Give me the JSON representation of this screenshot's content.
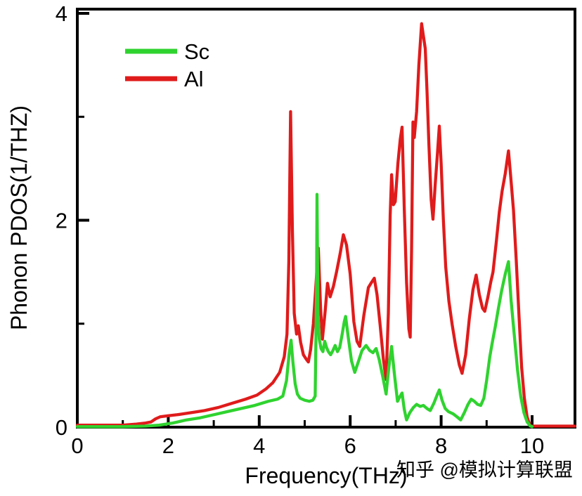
{
  "figure": {
    "background": "#ffffff",
    "watermark": {
      "text": "知乎 @模拟计算联盟",
      "color": "#c9c9c9"
    }
  },
  "chart_data": {
    "type": "line",
    "title": "",
    "xlabel": "Frequency(THz)",
    "ylabel": "Phonon PDOS(1/THZ)",
    "xlim": [
      0,
      10.94
    ],
    "ylim": [
      0,
      4.04
    ],
    "grid": false,
    "frame_color": "#000000",
    "legend_position": "top-left-inside",
    "x_major_ticks": [
      0,
      2,
      4,
      6,
      8,
      10
    ],
    "x_minor_ticks": [
      1,
      3,
      5,
      7,
      9
    ],
    "x_tick_labels": [
      "0",
      "2",
      "4",
      "6",
      "8",
      "10"
    ],
    "y_major_ticks": [
      0,
      2,
      4
    ],
    "y_minor_ticks": [
      1,
      3
    ],
    "y_tick_labels": [
      "0",
      "2",
      "4"
    ],
    "series": [
      {
        "name": "Sc",
        "color": "#2FD32F",
        "points": [
          [
            0,
            0.005
          ],
          [
            1.0,
            0.005
          ],
          [
            1.5,
            0.01
          ],
          [
            1.8,
            0.02
          ],
          [
            2.1,
            0.04
          ],
          [
            2.4,
            0.07
          ],
          [
            2.7,
            0.09
          ],
          [
            3.0,
            0.12
          ],
          [
            3.3,
            0.15
          ],
          [
            3.6,
            0.18
          ],
          [
            3.9,
            0.21
          ],
          [
            4.2,
            0.25
          ],
          [
            4.4,
            0.27
          ],
          [
            4.52,
            0.3
          ],
          [
            4.6,
            0.45
          ],
          [
            4.66,
            0.72
          ],
          [
            4.7,
            0.84
          ],
          [
            4.74,
            0.63
          ],
          [
            4.79,
            0.42
          ],
          [
            4.84,
            0.32
          ],
          [
            4.9,
            0.28
          ],
          [
            5.0,
            0.26
          ],
          [
            5.1,
            0.25
          ],
          [
            5.18,
            0.26
          ],
          [
            5.23,
            0.3
          ],
          [
            5.26,
            1.3
          ],
          [
            5.27,
            2.25
          ],
          [
            5.29,
            1.1
          ],
          [
            5.32,
            0.85
          ],
          [
            5.36,
            0.76
          ],
          [
            5.4,
            0.73
          ],
          [
            5.44,
            0.83
          ],
          [
            5.48,
            0.77
          ],
          [
            5.52,
            0.73
          ],
          [
            5.57,
            0.7
          ],
          [
            5.62,
            0.74
          ],
          [
            5.67,
            0.79
          ],
          [
            5.72,
            0.73
          ],
          [
            5.77,
            0.77
          ],
          [
            5.82,
            0.89
          ],
          [
            5.87,
            1.02
          ],
          [
            5.9,
            1.07
          ],
          [
            5.96,
            0.86
          ],
          [
            6.03,
            0.64
          ],
          [
            6.1,
            0.53
          ],
          [
            6.17,
            0.62
          ],
          [
            6.26,
            0.74
          ],
          [
            6.35,
            0.79
          ],
          [
            6.43,
            0.74
          ],
          [
            6.5,
            0.72
          ],
          [
            6.57,
            0.76
          ],
          [
            6.64,
            0.65
          ],
          [
            6.72,
            0.48
          ],
          [
            6.79,
            0.32
          ],
          [
            6.85,
            0.58
          ],
          [
            6.91,
            0.78
          ],
          [
            6.97,
            0.52
          ],
          [
            7.04,
            0.25
          ],
          [
            7.1,
            0.3
          ],
          [
            7.14,
            0.33
          ],
          [
            7.19,
            0.17
          ],
          [
            7.24,
            0.07
          ],
          [
            7.31,
            0.14
          ],
          [
            7.39,
            0.19
          ],
          [
            7.46,
            0.22
          ],
          [
            7.54,
            0.2
          ],
          [
            7.61,
            0.21
          ],
          [
            7.69,
            0.18
          ],
          [
            7.76,
            0.16
          ],
          [
            7.84,
            0.23
          ],
          [
            7.91,
            0.31
          ],
          [
            7.96,
            0.36
          ],
          [
            8.02,
            0.26
          ],
          [
            8.09,
            0.18
          ],
          [
            8.16,
            0.15
          ],
          [
            8.26,
            0.13
          ],
          [
            8.35,
            0.1
          ],
          [
            8.43,
            0.07
          ],
          [
            8.51,
            0.14
          ],
          [
            8.59,
            0.22
          ],
          [
            8.66,
            0.27
          ],
          [
            8.73,
            0.25
          ],
          [
            8.8,
            0.22
          ],
          [
            8.87,
            0.21
          ],
          [
            8.94,
            0.28
          ],
          [
            9.0,
            0.45
          ],
          [
            9.07,
            0.68
          ],
          [
            9.13,
            0.83
          ],
          [
            9.19,
            0.97
          ],
          [
            9.26,
            1.15
          ],
          [
            9.33,
            1.32
          ],
          [
            9.41,
            1.48
          ],
          [
            9.48,
            1.6
          ],
          [
            9.54,
            1.22
          ],
          [
            9.61,
            0.88
          ],
          [
            9.68,
            0.55
          ],
          [
            9.75,
            0.3
          ],
          [
            9.82,
            0.14
          ],
          [
            9.89,
            0.05
          ],
          [
            9.96,
            0.01
          ],
          [
            10.0,
            0.005
          ]
        ]
      },
      {
        "name": "Al",
        "color": "#E01B1B",
        "points": [
          [
            0,
            0.02
          ],
          [
            0.6,
            0.02
          ],
          [
            1.0,
            0.02
          ],
          [
            1.3,
            0.03
          ],
          [
            1.5,
            0.04
          ],
          [
            1.62,
            0.05
          ],
          [
            1.72,
            0.08
          ],
          [
            1.82,
            0.1
          ],
          [
            2.0,
            0.11
          ],
          [
            2.2,
            0.12
          ],
          [
            2.5,
            0.14
          ],
          [
            2.8,
            0.16
          ],
          [
            3.1,
            0.19
          ],
          [
            3.4,
            0.23
          ],
          [
            3.7,
            0.27
          ],
          [
            3.95,
            0.31
          ],
          [
            4.15,
            0.37
          ],
          [
            4.3,
            0.43
          ],
          [
            4.45,
            0.53
          ],
          [
            4.55,
            0.68
          ],
          [
            4.61,
            0.9
          ],
          [
            4.65,
            1.6
          ],
          [
            4.69,
            3.05
          ],
          [
            4.73,
            1.9
          ],
          [
            4.77,
            1.1
          ],
          [
            4.82,
            0.9
          ],
          [
            4.86,
            0.98
          ],
          [
            4.91,
            0.82
          ],
          [
            4.97,
            0.7
          ],
          [
            5.03,
            0.66
          ],
          [
            5.08,
            0.63
          ],
          [
            5.13,
            0.75
          ],
          [
            5.19,
            1.0
          ],
          [
            5.25,
            1.4
          ],
          [
            5.3,
            1.73
          ],
          [
            5.35,
            1.15
          ],
          [
            5.39,
            0.85
          ],
          [
            5.45,
            1.12
          ],
          [
            5.5,
            1.39
          ],
          [
            5.56,
            1.26
          ],
          [
            5.63,
            1.36
          ],
          [
            5.7,
            1.5
          ],
          [
            5.78,
            1.68
          ],
          [
            5.85,
            1.86
          ],
          [
            5.92,
            1.76
          ],
          [
            6.0,
            1.48
          ],
          [
            6.08,
            1.02
          ],
          [
            6.15,
            0.83
          ],
          [
            6.21,
            0.78
          ],
          [
            6.3,
            1.08
          ],
          [
            6.4,
            1.35
          ],
          [
            6.47,
            1.4
          ],
          [
            6.53,
            1.44
          ],
          [
            6.59,
            1.28
          ],
          [
            6.66,
            0.98
          ],
          [
            6.73,
            0.66
          ],
          [
            6.79,
            0.46
          ],
          [
            6.84,
            1.1
          ],
          [
            6.88,
            2.05
          ],
          [
            6.91,
            2.44
          ],
          [
            6.95,
            2.15
          ],
          [
            6.99,
            2.18
          ],
          [
            7.05,
            2.55
          ],
          [
            7.1,
            2.78
          ],
          [
            7.14,
            2.9
          ],
          [
            7.19,
            2.1
          ],
          [
            7.24,
            1.4
          ],
          [
            7.29,
            0.95
          ],
          [
            7.32,
            0.87
          ],
          [
            7.35,
            1.7
          ],
          [
            7.38,
            2.95
          ],
          [
            7.41,
            2.8
          ],
          [
            7.46,
            3.05
          ],
          [
            7.51,
            3.5
          ],
          [
            7.57,
            3.9
          ],
          [
            7.61,
            3.78
          ],
          [
            7.65,
            3.66
          ],
          [
            7.69,
            3.25
          ],
          [
            7.73,
            2.75
          ],
          [
            7.78,
            2.2
          ],
          [
            7.82,
            2.01
          ],
          [
            7.87,
            2.35
          ],
          [
            7.92,
            2.65
          ],
          [
            7.96,
            2.91
          ],
          [
            8.0,
            2.55
          ],
          [
            8.05,
            2.0
          ],
          [
            8.1,
            1.55
          ],
          [
            8.17,
            1.22
          ],
          [
            8.24,
            1.0
          ],
          [
            8.32,
            0.78
          ],
          [
            8.4,
            0.6
          ],
          [
            8.46,
            0.52
          ],
          [
            8.54,
            0.7
          ],
          [
            8.62,
            1.05
          ],
          [
            8.7,
            1.33
          ],
          [
            8.77,
            1.47
          ],
          [
            8.84,
            1.28
          ],
          [
            8.91,
            1.15
          ],
          [
            8.96,
            1.12
          ],
          [
            9.03,
            1.26
          ],
          [
            9.09,
            1.4
          ],
          [
            9.14,
            1.5
          ],
          [
            9.21,
            1.78
          ],
          [
            9.28,
            2.08
          ],
          [
            9.34,
            2.28
          ],
          [
            9.41,
            2.45
          ],
          [
            9.48,
            2.67
          ],
          [
            9.53,
            2.42
          ],
          [
            9.59,
            2.1
          ],
          [
            9.65,
            1.62
          ],
          [
            9.71,
            1.1
          ],
          [
            9.77,
            0.58
          ],
          [
            9.83,
            0.28
          ],
          [
            9.89,
            0.1
          ],
          [
            9.95,
            0.02
          ],
          [
            10.0,
            0.01
          ],
          [
            10.4,
            0.01
          ],
          [
            10.94,
            0.01
          ]
        ]
      }
    ]
  }
}
